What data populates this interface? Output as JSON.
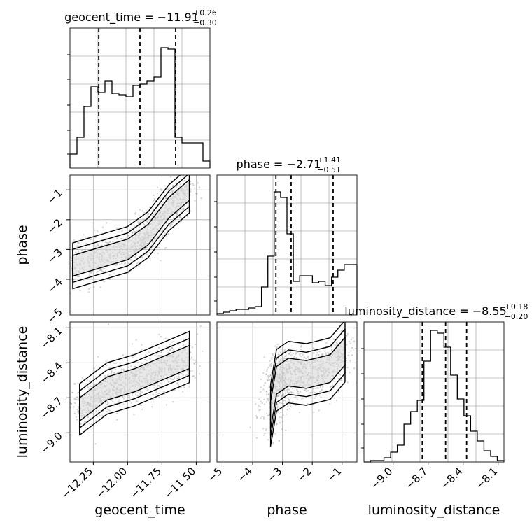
{
  "chart_data": {
    "type": "corner",
    "parameters": [
      {
        "name": "geocent_time",
        "range": [
          -12.42,
          -11.4
        ],
        "ticks": [
          -12.25,
          -12.0,
          -11.75,
          -11.5
        ],
        "tick_labels": [
          "−12.25",
          "−12.00",
          "−11.75",
          "−11.50"
        ],
        "title_main": "geocent_time = −11.91",
        "title_sup": "+0.26",
        "title_sub": "−0.30",
        "quantiles": [
          -12.21,
          -11.91,
          -11.65
        ],
        "hist": [
          0.1,
          0.22,
          0.44,
          0.58,
          0.54,
          0.62,
          0.53,
          0.52,
          0.51,
          0.59,
          0.6,
          0.62,
          0.65,
          0.86,
          0.85,
          0.22,
          0.18,
          0.18,
          0.18,
          0.05
        ]
      },
      {
        "name": "phase",
        "range": [
          -5.2,
          -0.5
        ],
        "ticks": [
          -5,
          -4,
          -3,
          -2,
          -1
        ],
        "tick_labels": [
          "−5",
          "−4",
          "−3",
          "−2",
          "−1"
        ],
        "title_main": "phase = −2.71",
        "title_sup": "+1.41",
        "title_sub": "−0.51",
        "quantiles": [
          -3.22,
          -2.71,
          -1.3
        ],
        "hist": [
          0.01,
          0.02,
          0.03,
          0.04,
          0.04,
          0.05,
          0.06,
          0.2,
          0.42,
          0.88,
          0.84,
          0.58,
          0.24,
          0.28,
          0.28,
          0.23,
          0.24,
          0.21,
          0.27,
          0.32,
          0.36,
          0.36
        ]
      },
      {
        "name": "luminosity_distance",
        "range": [
          -9.25,
          -8.05
        ],
        "ticks": [
          -9.0,
          -8.7,
          -8.4,
          -8.1
        ],
        "tick_labels": [
          "−9.0",
          "−8.7",
          "−8.4",
          "−8.1"
        ],
        "title_main": "luminosity_distance = −8.55",
        "title_sup": "+0.18",
        "title_sub": "−0.20",
        "quantiles": [
          -8.75,
          -8.55,
          -8.37
        ],
        "hist": [
          0.0,
          0.01,
          0.01,
          0.03,
          0.07,
          0.12,
          0.27,
          0.36,
          0.44,
          0.72,
          0.94,
          0.92,
          0.82,
          0.62,
          0.45,
          0.33,
          0.22,
          0.15,
          0.08,
          0.04,
          0.01
        ]
      }
    ],
    "pairs": [
      {
        "x": 0,
        "y": 1,
        "label": "phase vs geocent_time"
      },
      {
        "x": 0,
        "y": 2,
        "label": "luminosity_distance vs geocent_time"
      },
      {
        "x": 1,
        "y": 2,
        "label": "luminosity_distance vs phase"
      }
    ]
  }
}
